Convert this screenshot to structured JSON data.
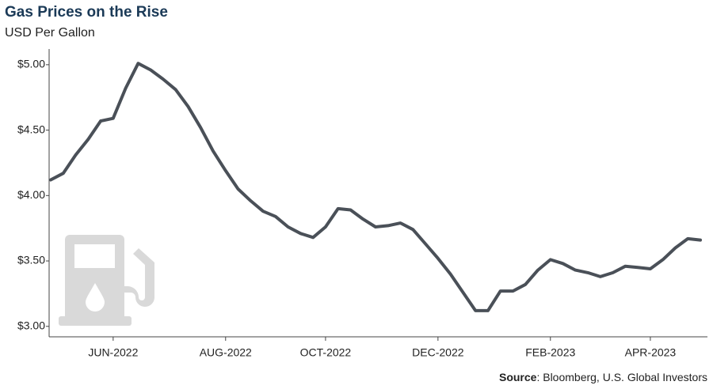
{
  "chart_data": {
    "type": "line",
    "title": "Gas Prices on the Rise",
    "subtitle": "USD Per Gallon",
    "source_label": "Source",
    "source_text": ": Bloomberg, U.S. Global Investors",
    "categories": [
      null,
      null,
      null,
      null,
      null,
      "JUN-2022",
      null,
      null,
      null,
      null,
      null,
      null,
      null,
      null,
      "AUG-2022",
      null,
      null,
      null,
      null,
      null,
      null,
      null,
      "OCT-2022",
      null,
      null,
      null,
      null,
      null,
      null,
      null,
      null,
      "DEC-2022",
      null,
      null,
      null,
      null,
      null,
      null,
      null,
      null,
      "FEB-2023",
      null,
      null,
      null,
      null,
      null,
      null,
      null,
      "APR-2023",
      null,
      null,
      null,
      null
    ],
    "series": [
      {
        "color": "#4a5058",
        "values": [
          4.12,
          4.17,
          4.31,
          4.43,
          4.57,
          4.59,
          4.82,
          5.01,
          4.96,
          4.89,
          4.81,
          4.68,
          4.52,
          4.34,
          4.19,
          4.05,
          3.96,
          3.88,
          3.84,
          3.76,
          3.71,
          3.68,
          3.76,
          3.9,
          3.89,
          3.82,
          3.76,
          3.77,
          3.79,
          3.74,
          3.63,
          3.52,
          3.4,
          3.26,
          3.12,
          3.12,
          3.27,
          3.27,
          3.32,
          3.43,
          3.51,
          3.48,
          3.43,
          3.41,
          3.38,
          3.41,
          3.46,
          3.45,
          3.44,
          3.51,
          3.6,
          3.67,
          3.66
        ]
      }
    ],
    "ylim": [
      2.92,
      5.12
    ],
    "yticks": [
      {
        "value": 3,
        "label": "$3.00"
      },
      {
        "value": 3.5,
        "label": "$3.50"
      },
      {
        "value": 4,
        "label": "$4.00"
      },
      {
        "value": 4.5,
        "label": "$4.50"
      },
      {
        "value": 5,
        "label": "$5.00"
      }
    ]
  }
}
